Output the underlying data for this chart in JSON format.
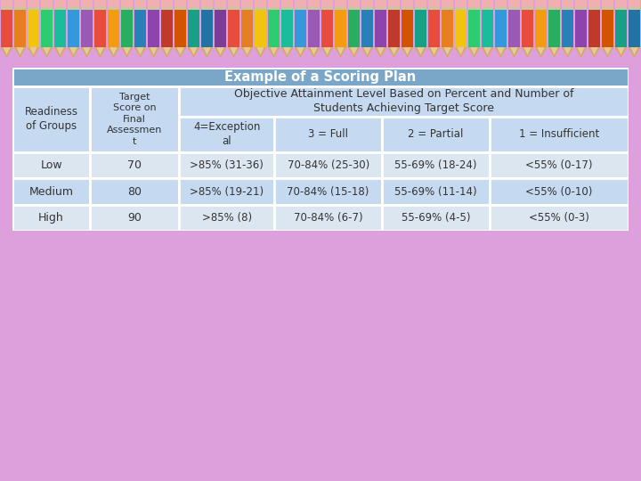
{
  "title": "Example of a Scoring Plan",
  "title_bg": "#7aa7c7",
  "title_color": "#ffffff",
  "header_bg": "#c5d9f1",
  "row_bg_light": "#dce6f1",
  "row_bg_dark": "#c5d9f1",
  "border_color": "#ffffff",
  "bg_color": "#dda0dd",
  "span_header": "Objective Attainment Level Based on Percent and Number of\nStudents Achieving Target Score",
  "col0_header": "Readiness\nof Groups",
  "col1_header": "Target\nScore on\nFinal\nAssessmen\nt",
  "col2_header": "4=Exception\nal",
  "col3_header": "3 = Full",
  "col4_header": "2 = Partial",
  "col5_header": "1 = Insufficient",
  "rows": [
    [
      "Low",
      "70",
      ">85% (31-36)",
      "70-84% (25-30)",
      "55-69% (18-24)",
      "<55% (0-17)"
    ],
    [
      "Medium",
      "80",
      ">85% (19-21)",
      "70-84% (15-18)",
      "55-69% (11-14)",
      "<55% (0-10)"
    ],
    [
      "High",
      "90",
      ">85% (8)",
      "70-84% (6-7)",
      "55-69% (4-5)",
      "<55% (0-3)"
    ]
  ],
  "pencil_colors": [
    "#e74c3c",
    "#e67e22",
    "#f1c40f",
    "#2ecc71",
    "#1abc9c",
    "#3498db",
    "#9b59b6",
    "#e74c3c",
    "#f39c12",
    "#27ae60",
    "#2980b9",
    "#8e44ad",
    "#c0392b",
    "#d35400",
    "#16a085",
    "#2471a3",
    "#7d3c98",
    "#e74c3c",
    "#e67e22",
    "#f1c40f",
    "#2ecc71",
    "#1abc9c",
    "#3498db",
    "#9b59b6",
    "#e74c3c",
    "#f39c12",
    "#27ae60",
    "#2980b9",
    "#8e44ad",
    "#c0392b",
    "#d35400",
    "#16a085",
    "#e74c3c",
    "#e67e22",
    "#f1c40f",
    "#2ecc71",
    "#1abc9c",
    "#3498db",
    "#9b59b6",
    "#e74c3c",
    "#f39c12",
    "#27ae60",
    "#2980b9",
    "#8e44ad",
    "#c0392b",
    "#d35400",
    "#16a085",
    "#2471a3"
  ],
  "n_pencils": 48
}
